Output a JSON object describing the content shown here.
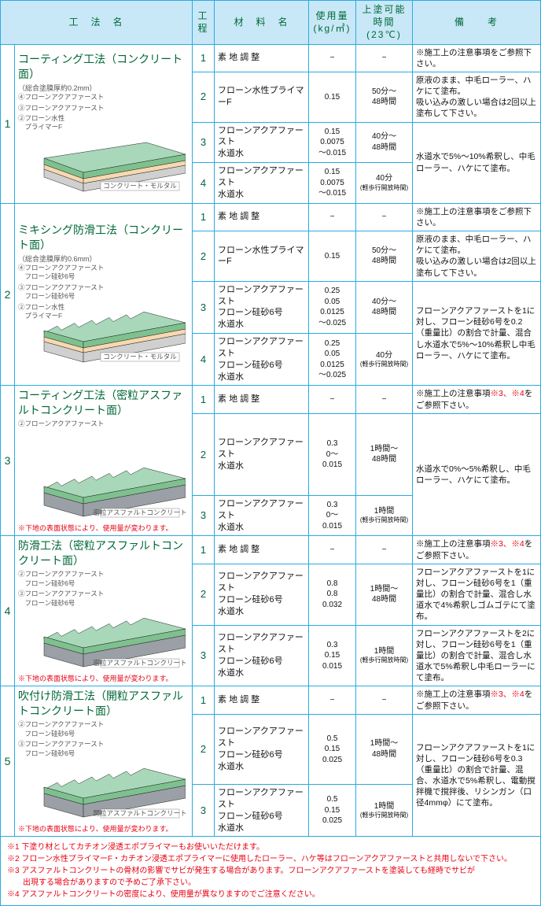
{
  "headers": {
    "method": "工　法　名",
    "step": "工程",
    "material": "材　料　名",
    "usage": "使用量\n(kg/㎡)",
    "time": "上塗可能時間\n(23℃)",
    "note": "備　　考"
  },
  "globals": {
    "dash": "−",
    "note_attention": "※施工上の注意事項をご参照下さい。",
    "note_attention34_a": "※施工上の注意事項",
    "note_attention34_b": "※3、※4",
    "note_attention34_c": "をご参照下さい。",
    "substrate_warn": "※下地の表面状態により、使用量が変わります。"
  },
  "diagram_colors": {
    "layer_top": "#a8d8b9",
    "layer_top_edge": "#7ec18f",
    "layer_mid": "#f8d8b0",
    "layer_bottom": "#d0d0d0",
    "asphalt": "#9aa0a6",
    "outline": "#222"
  },
  "sections": [
    {
      "num": "1",
      "title": "コーティング工法（コンクリート面）",
      "subtitle": "（総合塗膜厚約0.2mm）",
      "labels": [
        "④フローンアクアファースト",
        "③フローンアクアファースト",
        "②フローン水性\n　プライマーF"
      ],
      "substrate_label": "コンクリート・モルタル",
      "diagram_type": "flat",
      "rows": [
        {
          "step": "1",
          "mat": "素 地 調 整",
          "use": "−",
          "time": "−",
          "note": "@attention"
        },
        {
          "step": "2",
          "mat": "フローン水性プライマーF",
          "use": "0.15",
          "time": "50分～\n48時間",
          "note": "原液のまま、中毛ローラー、ハケにて塗布。\n吸い込みの激しい場合は2回以上塗布して下さい。",
          "rowspan_note": 1
        },
        {
          "step": "3",
          "mat": "フローンアクアファースト\n水道水",
          "use": "0.15\n0.0075\n～0.015",
          "time": "40分～\n48時間",
          "note": "水道水で5%～10%希釈し、中毛ローラー、ハケにて塗布。",
          "rowspan_note": 2
        },
        {
          "step": "4",
          "mat": "フローンアクアファースト\n水道水",
          "use": "0.15\n0.0075\n～0.015",
          "time": "40分",
          "time_small": "(軽歩行開放時間)"
        }
      ]
    },
    {
      "num": "2",
      "title": "ミキシング防滑工法（コンクリート面）",
      "subtitle": "（総合塗膜厚約0.6mm）",
      "labels": [
        "④フローンアクアファースト\n　フローン硅砂6号",
        "③フローンアクアファースト\n　フローン硅砂6号",
        "②フローン水性\n　プライマーF"
      ],
      "substrate_label": "コンクリート・モルタル",
      "diagram_type": "rough",
      "rows": [
        {
          "step": "1",
          "mat": "素 地 調 整",
          "use": "−",
          "time": "−",
          "note": "@attention"
        },
        {
          "step": "2",
          "mat": "フローン水性プライマーF",
          "use": "0.15",
          "time": "50分～\n48時間",
          "note": "原液のまま、中毛ローラー、ハケにて塗布。\n吸い込みの激しい場合は2回以上塗布して下さい。"
        },
        {
          "step": "3",
          "mat": "フローンアクアファースト\nフローン硅砂6号\n水道水",
          "use": "0.25\n0.05\n0.0125\n～0.025",
          "time": "40分～\n48時間",
          "note": "フローンアクアファーストを1に対し、フローン硅砂6号を0.2（重量比）の割合で計量、混合し水道水で5%～10%希釈し中毛ローラー、ハケにて塗布。",
          "rowspan_note": 2
        },
        {
          "step": "4",
          "mat": "フローンアクアファースト\nフローン硅砂6号\n水道水",
          "use": "0.25\n0.05\n0.0125\n～0.025",
          "time": "40分",
          "time_small": "(軽歩行開放時間)"
        }
      ]
    },
    {
      "num": "3",
      "title": "コーティング工法（密粒アスファルトコンクリート面）",
      "subtitle": "",
      "labels": [
        "②フローンアクアファースト"
      ],
      "substrate_label": "密粒アスファルトコンクリート",
      "diagram_type": "rough_asphalt",
      "show_warn": true,
      "rows": [
        {
          "step": "1",
          "mat": "素 地 調 整",
          "use": "−",
          "time": "−",
          "note": "@attention34"
        },
        {
          "step": "2",
          "mat": "フローンアクアファースト\n水道水",
          "use": "0.3\n0～\n0.015",
          "time": "1時間～\n48時間",
          "note": "水道水で0%～5%希釈し、中毛ローラー、ハケにて塗布。",
          "rowspan_note": 2
        },
        {
          "step": "3",
          "mat": "フローンアクアファースト\n水道水",
          "use": "0.3\n0～\n0.015",
          "time": "1時間",
          "time_small": "(軽歩行開放時間)"
        }
      ]
    },
    {
      "num": "4",
      "title": "防滑工法（密粒アスファルトコンクリート面）",
      "subtitle": "",
      "labels": [
        "②フローンアクアファースト\n　フローン硅砂6号",
        "③フローンアクアファースト\n　フローン硅砂6号"
      ],
      "substrate_label": "密粒アスファルトコンクリート",
      "diagram_type": "rough_asphalt",
      "show_warn": true,
      "rows": [
        {
          "step": "1",
          "mat": "素 地 調 整",
          "use": "−",
          "time": "−",
          "note": "@attention34"
        },
        {
          "step": "2",
          "mat": "フローンアクアファースト\nフローン硅砂6号\n水道水",
          "use": "0.8\n0.8\n0.032",
          "time": "1時間～\n48時間",
          "note": "フローンアクアファーストを1に対し、フローン硅砂6号を1（重量比）の割合で計量、混合し水道水で4%希釈しゴムゴテにて塗布。"
        },
        {
          "step": "3",
          "mat": "フローンアクアファースト\nフローン硅砂6号\n水道水",
          "use": "0.3\n0.15\n0.015",
          "time": "1時間",
          "time_small": "(軽歩行開放時間)",
          "note": "フローンアクアファーストを2に対し、フローン硅砂6号を1（重量比）の割合で計量、混合し水道水で5%希釈し中毛ローラーにて塗布。"
        }
      ]
    },
    {
      "num": "5",
      "title": "吹付け防滑工法（開粒アスファルトコンクリート面）",
      "subtitle": "",
      "labels": [
        "②フローンアクアファースト\n　フローン硅砂6号",
        "③フローンアクアファースト\n　フローン硅砂6号"
      ],
      "substrate_label": "開粒アスファルトコンクリート",
      "diagram_type": "rough_asphalt",
      "show_warn": true,
      "rows": [
        {
          "step": "1",
          "mat": "素 地 調 整",
          "use": "−",
          "time": "−",
          "note": "@attention34"
        },
        {
          "step": "2",
          "mat": "フローンアクアファースト\nフローン硅砂6号\n水道水",
          "use": "0.5\n0.15\n0.025",
          "time": "1時間～\n48時間",
          "note": "フローンアクアファーストを1に対し、フローン硅砂6号を0.3（重量比）の割合で計量、混合、水道水で5%希釈し、電動撹拌機で撹拌後、リシンガン（口径4mmφ）にて塗布。",
          "rowspan_note": 2
        },
        {
          "step": "3",
          "mat": "フローンアクアファースト\nフローン硅砂6号\n水道水",
          "use": "0.5\n0.15\n0.025",
          "time": "1時間",
          "time_small": "(軽歩行開放時間)"
        }
      ]
    }
  ],
  "footnotes": [
    "※1 下塗り材としてカチオン浸透エポプライマーもお使いいただけます。",
    "※2 フローン水性プライマーF・カチオン浸透エポプライマーに使用したローラー、ハケ等はフローンアクアファーストと共用しないで下さい。",
    "※3 アスファルトコンクリートの骨材の影響でサビが発生する場合があります。フローンアクアファーストを塗装しても経時でサビが",
    "　　出現する場合がありますので予めご了承下さい。",
    "※4 アスファルトコンクリートの密度により、使用量が異なりますのでご注意ください。"
  ]
}
